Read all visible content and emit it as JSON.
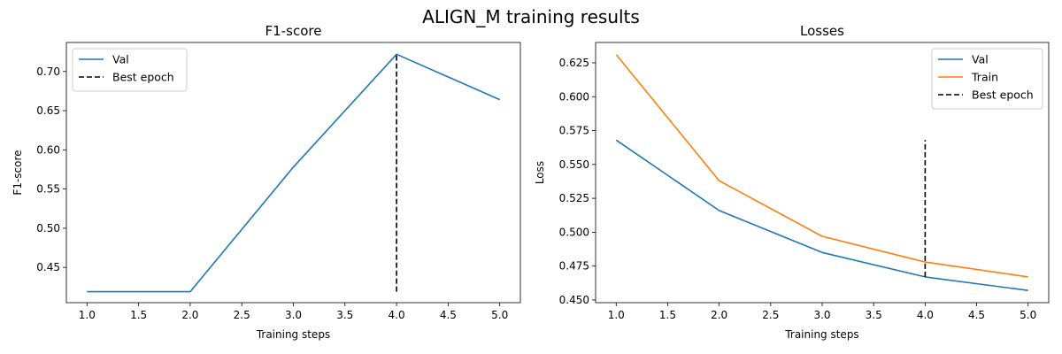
{
  "suptitle": "ALIGN_M training results",
  "chart_data": [
    {
      "type": "line",
      "title": "F1-score",
      "xlabel": "Training steps",
      "ylabel": "F1-score",
      "xlim": [
        0.8,
        5.2
      ],
      "ylim": [
        0.405,
        0.737
      ],
      "xticks": [
        1.0,
        1.5,
        2.0,
        2.5,
        3.0,
        3.5,
        4.0,
        4.5,
        5.0
      ],
      "yticks": [
        0.45,
        0.5,
        0.55,
        0.6,
        0.65,
        0.7
      ],
      "x_tick_labels": [
        "1.0",
        "1.5",
        "2.0",
        "2.5",
        "3.0",
        "3.5",
        "4.0",
        "4.5",
        "5.0"
      ],
      "y_tick_labels": [
        "0.45",
        "0.50",
        "0.55",
        "0.60",
        "0.65",
        "0.70"
      ],
      "legend_position": "top-left",
      "series": [
        {
          "name": "Val",
          "color": "#1f77b4",
          "x": [
            1,
            2,
            3,
            4,
            5
          ],
          "y": [
            0.419,
            0.419,
            0.578,
            0.722,
            0.664
          ]
        }
      ],
      "best_epoch": {
        "name": "Best epoch",
        "x": 4,
        "y_range": [
          0.419,
          0.722
        ],
        "color": "#000000"
      }
    },
    {
      "type": "line",
      "title": "Losses",
      "xlabel": "Training steps",
      "ylabel": "Loss",
      "xlim": [
        0.8,
        5.2
      ],
      "ylim": [
        0.448,
        0.64
      ],
      "xticks": [
        1.0,
        1.5,
        2.0,
        2.5,
        3.0,
        3.5,
        4.0,
        4.5,
        5.0
      ],
      "yticks": [
        0.45,
        0.475,
        0.5,
        0.525,
        0.55,
        0.575,
        0.6,
        0.625
      ],
      "x_tick_labels": [
        "1.0",
        "1.5",
        "2.0",
        "2.5",
        "3.0",
        "3.5",
        "4.0",
        "4.5",
        "5.0"
      ],
      "y_tick_labels": [
        "0.450",
        "0.475",
        "0.500",
        "0.525",
        "0.550",
        "0.575",
        "0.600",
        "0.625"
      ],
      "legend_position": "top-right",
      "series": [
        {
          "name": "Val",
          "color": "#1f77b4",
          "x": [
            1,
            2,
            3,
            4,
            5
          ],
          "y": [
            0.568,
            0.516,
            0.485,
            0.467,
            0.457
          ]
        },
        {
          "name": "Train",
          "color": "#ff7f0e",
          "x": [
            1,
            2,
            3,
            4,
            5
          ],
          "y": [
            0.631,
            0.538,
            0.497,
            0.478,
            0.467
          ]
        }
      ],
      "best_epoch": {
        "name": "Best epoch",
        "x": 4,
        "y_range": [
          0.467,
          0.568
        ],
        "color": "#000000"
      }
    }
  ]
}
